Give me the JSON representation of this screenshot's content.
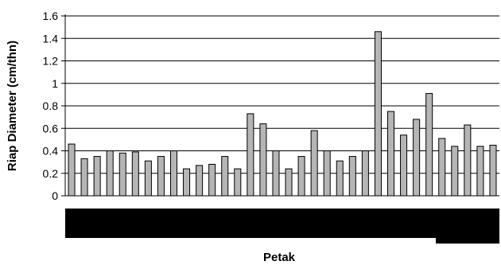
{
  "chart_data": {
    "type": "bar",
    "title": "",
    "xlabel": "Petak",
    "ylabel": "Riap Diameter (cm/thn)",
    "ylim": [
      0,
      1.6
    ],
    "yticks": [
      0,
      0.2,
      0.4,
      0.6,
      0.8,
      1,
      1.2,
      1.4,
      1.6
    ],
    "ytick_labels": [
      "0",
      "0.2",
      "0.4",
      "0.6",
      "0.8",
      "1",
      "1.2",
      "1.4",
      "1.6"
    ],
    "grid": true,
    "legend": "none",
    "category_labels": "obscured",
    "values": [
      0.46,
      0.33,
      0.35,
      0.4,
      0.38,
      0.39,
      0.31,
      0.35,
      0.4,
      0.24,
      0.27,
      0.28,
      0.35,
      0.24,
      0.73,
      0.64,
      0.4,
      0.24,
      0.35,
      0.58,
      0.4,
      0.31,
      0.35,
      0.4,
      1.46,
      0.75,
      0.54,
      0.68,
      0.91,
      0.51,
      0.44,
      0.63,
      0.44,
      0.45
    ]
  },
  "colors": {
    "bar_fill": "#b5b5b5",
    "bar_stroke": "#000000",
    "grid": "#000000",
    "label_mask": "#000000"
  }
}
